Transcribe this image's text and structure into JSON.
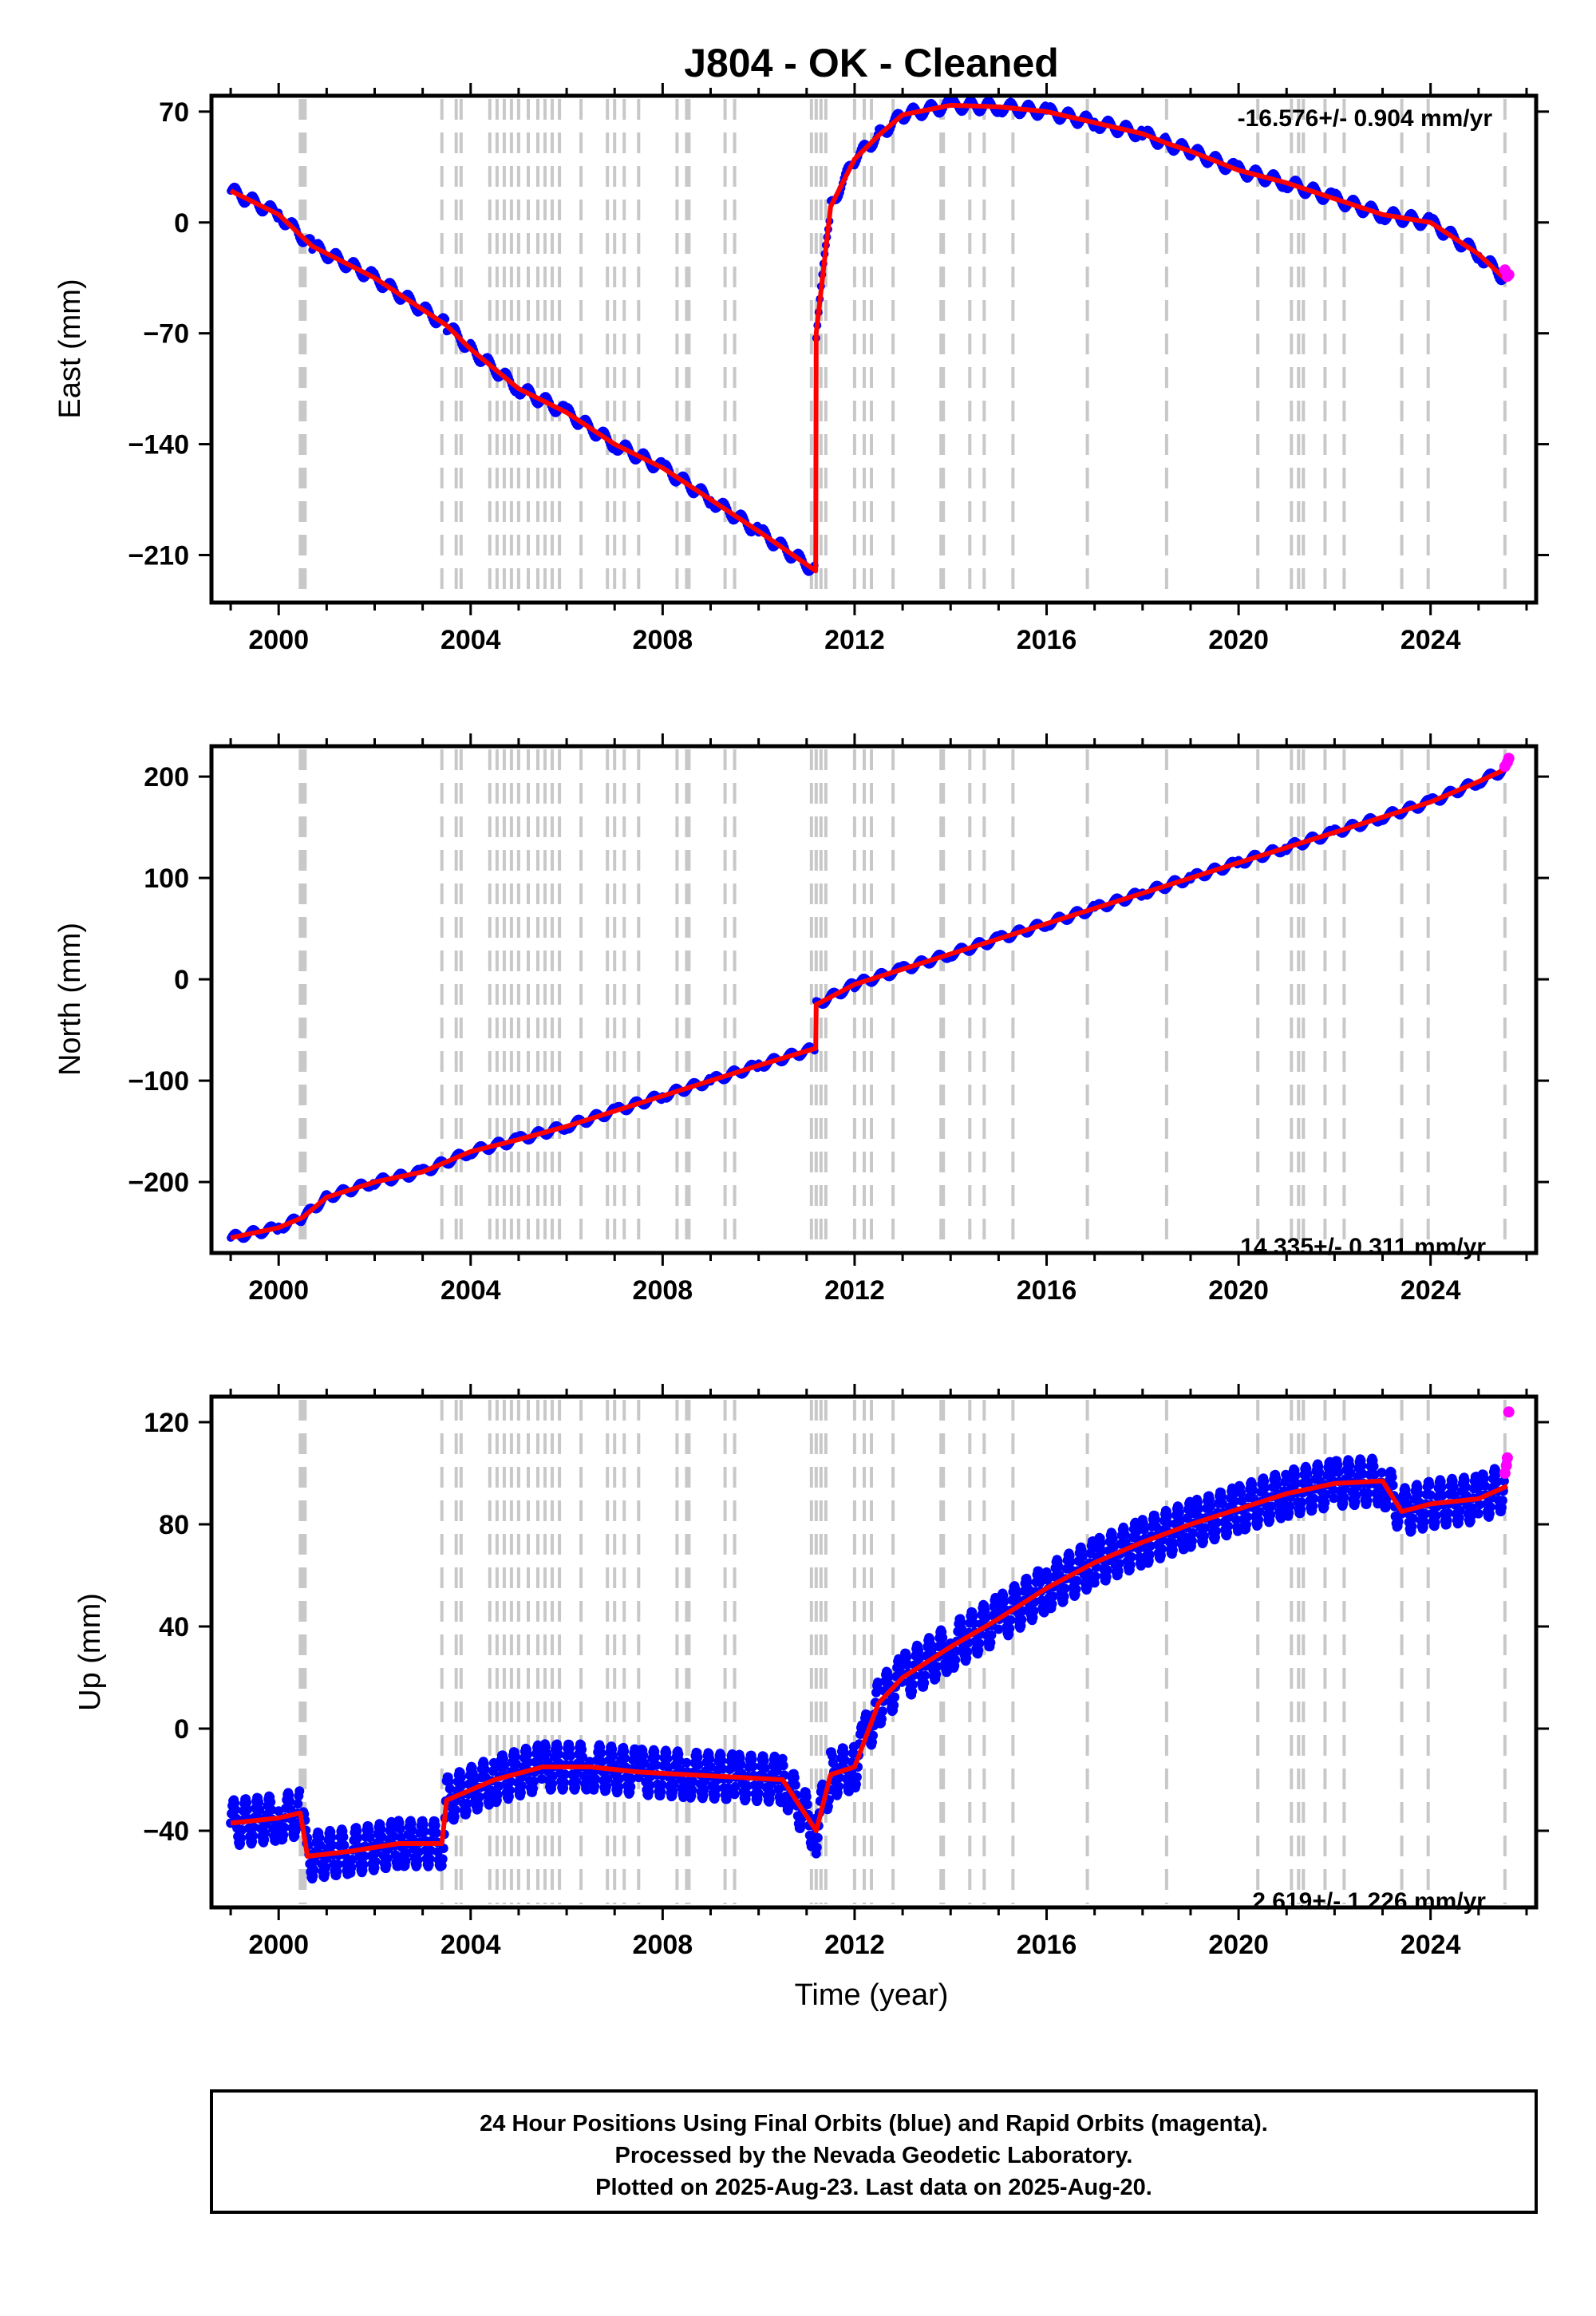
{
  "title": "J804  - OK - Cleaned",
  "xlabel": "Time (year)",
  "colors": {
    "final": "#0000ff",
    "rapid": "#ff00ff",
    "model": "#ff0000",
    "steps": "#c8c8c8"
  },
  "chart_data": [
    {
      "type": "scatter",
      "ylabel": "East (mm)",
      "rate": "-16.576+/- 0.904 mm/yr",
      "xlim": [
        1998.6,
        2026.2
      ],
      "ylim": [
        -240,
        80
      ],
      "xticks": [
        "2000",
        "2004",
        "2008",
        "2012",
        "2016",
        "2020",
        "2024"
      ],
      "yticks": [
        "70",
        "0",
        "−70",
        "−140",
        "−210"
      ],
      "series": [
        {
          "name": "Final Orbits (blue)",
          "x": [
            1999.0,
            2000.0,
            2000.7,
            2002.0,
            2003.5,
            2004.0,
            2005.0,
            2006.0,
            2007.0,
            2008.0,
            2009.0,
            2010.0,
            2011.19,
            2011.2,
            2011.5,
            2012.0,
            2012.5,
            2013.0,
            2014.0,
            2015.0,
            2016.0,
            2017.0,
            2018.0,
            2018.5,
            2019.0,
            2020.0,
            2021.0,
            2022.0,
            2023.0,
            2024.0,
            2025.0,
            2025.6
          ],
          "y": [
            20,
            5,
            -15,
            -35,
            -65,
            -80,
            -105,
            -120,
            -140,
            -155,
            -175,
            -195,
            -220,
            -70,
            10,
            40,
            55,
            68,
            74,
            73,
            70,
            63,
            56,
            50,
            45,
            33,
            25,
            15,
            5,
            0,
            -20,
            -37
          ]
        },
        {
          "name": "Rapid Orbits (magenta)",
          "x": [
            2025.55,
            2025.6,
            2025.63
          ],
          "y": [
            -30,
            -34,
            -33
          ]
        }
      ],
      "steps": [
        2000.45,
        2000.5,
        2000.55,
        2003.4,
        2003.7,
        2003.8,
        2004.4,
        2004.55,
        2004.7,
        2004.85,
        2005.0,
        2005.2,
        2005.4,
        2005.55,
        2005.7,
        2005.85,
        2006.3,
        2006.85,
        2007.0,
        2007.2,
        2007.5,
        2008.3,
        2008.5,
        2008.55,
        2009.3,
        2009.5,
        2011.1,
        2011.2,
        2011.3,
        2011.4,
        2012.0,
        2012.2,
        2012.35,
        2012.8,
        2013.8,
        2013.85,
        2014.4,
        2014.7,
        2015.3,
        2016.85,
        2018.5,
        2020.4,
        2021.1,
        2021.25,
        2021.35,
        2021.8,
        2022.2,
        2023.4,
        2023.95,
        2025.55
      ]
    },
    {
      "type": "scatter",
      "ylabel": "North (mm)",
      "rate": "14.335+/- 0.311 mm/yr",
      "xlim": [
        1998.6,
        2026.2
      ],
      "ylim": [
        -270,
        230
      ],
      "xticks": [
        "2000",
        "2004",
        "2008",
        "2012",
        "2016",
        "2020",
        "2024"
      ],
      "yticks": [
        "200",
        "100",
        "0",
        "−100",
        "−200"
      ],
      "series": [
        {
          "name": "Final Orbits (blue)",
          "x": [
            1999.0,
            2000.0,
            2000.5,
            2001.0,
            2002.0,
            2003.0,
            2004.0,
            2005.0,
            2006.0,
            2007.0,
            2008.0,
            2009.0,
            2010.0,
            2011.19,
            2011.2,
            2012.0,
            2013.0,
            2014.0,
            2015.0,
            2016.0,
            2017.0,
            2018.0,
            2019.0,
            2020.0,
            2021.0,
            2022.0,
            2023.0,
            2024.0,
            2025.0,
            2025.6
          ],
          "y": [
            -255,
            -245,
            -235,
            -215,
            -200,
            -190,
            -170,
            -158,
            -145,
            -130,
            -115,
            -100,
            -85,
            -68,
            -25,
            -5,
            10,
            25,
            40,
            55,
            70,
            85,
            100,
            115,
            130,
            145,
            160,
            175,
            195,
            208
          ]
        },
        {
          "name": "Rapid Orbits (magenta)",
          "x": [
            2025.55,
            2025.6,
            2025.63
          ],
          "y": [
            210,
            214,
            218
          ]
        }
      ],
      "steps": [
        2000.45,
        2000.5,
        2000.55,
        2003.4,
        2003.7,
        2003.8,
        2004.4,
        2004.55,
        2004.7,
        2004.85,
        2005.0,
        2005.2,
        2005.4,
        2005.55,
        2005.7,
        2005.85,
        2006.3,
        2006.85,
        2007.0,
        2007.2,
        2007.5,
        2008.3,
        2008.5,
        2008.55,
        2009.3,
        2009.5,
        2011.1,
        2011.2,
        2011.3,
        2011.4,
        2012.0,
        2012.2,
        2012.35,
        2012.8,
        2013.8,
        2013.85,
        2014.4,
        2014.7,
        2015.3,
        2016.85,
        2018.5,
        2020.4,
        2021.1,
        2021.25,
        2021.35,
        2021.8,
        2022.2,
        2023.4,
        2023.95,
        2025.55
      ]
    },
    {
      "type": "scatter",
      "ylabel": "Up (mm)",
      "rate": "2.619+/- 1.226 mm/yr",
      "xlim": [
        1998.6,
        2026.2
      ],
      "ylim": [
        -70,
        130
      ],
      "xticks": [
        "2000",
        "2004",
        "2008",
        "2012",
        "2016",
        "2020",
        "2024"
      ],
      "yticks": [
        "120",
        "80",
        "40",
        "0",
        "−40"
      ],
      "series": [
        {
          "name": "Final Orbits (blue)",
          "x": [
            1999.0,
            2000.0,
            2000.45,
            2000.6,
            2001.5,
            2002.5,
            2003.4,
            2003.5,
            2004.5,
            2005.5,
            2006.5,
            2007.5,
            2008.5,
            2009.5,
            2010.5,
            2011.2,
            2011.5,
            2012.0,
            2012.2,
            2012.5,
            2013.0,
            2014.0,
            2015.0,
            2016.0,
            2017.0,
            2018.0,
            2019.0,
            2020.0,
            2021.0,
            2022.0,
            2023.0,
            2023.4,
            2024.0,
            2025.0,
            2025.6
          ],
          "y": [
            -37,
            -35,
            -33,
            -50,
            -48,
            -45,
            -45,
            -28,
            -20,
            -15,
            -15,
            -17,
            -18,
            -19,
            -20,
            -40,
            -18,
            -15,
            -5,
            10,
            20,
            32,
            43,
            55,
            65,
            73,
            80,
            86,
            92,
            96,
            97,
            85,
            88,
            90,
            95
          ]
        },
        {
          "name": "Rapid Orbits (magenta)",
          "x": [
            2025.55,
            2025.58,
            2025.6,
            2025.63
          ],
          "y": [
            100,
            103,
            106,
            124
          ]
        }
      ],
      "steps": [
        2000.45,
        2000.5,
        2000.55,
        2003.4,
        2003.7,
        2003.8,
        2004.4,
        2004.55,
        2004.7,
        2004.85,
        2005.0,
        2005.2,
        2005.4,
        2005.55,
        2005.7,
        2005.85,
        2006.3,
        2006.85,
        2007.0,
        2007.2,
        2007.5,
        2008.3,
        2008.5,
        2008.55,
        2009.3,
        2009.5,
        2011.1,
        2011.2,
        2011.3,
        2011.4,
        2012.0,
        2012.2,
        2012.35,
        2012.8,
        2013.8,
        2013.85,
        2014.4,
        2014.7,
        2015.3,
        2016.85,
        2018.5,
        2020.4,
        2021.1,
        2021.25,
        2021.35,
        2021.8,
        2022.2,
        2023.4,
        2023.95,
        2025.55
      ]
    }
  ],
  "footer": {
    "line1": "24 Hour Positions Using Final Orbits (blue) and Rapid Orbits (magenta).",
    "line2": "Processed by the Nevada Geodetic Laboratory.",
    "line3": "Plotted on 2025-Aug-23. Last data on 2025-Aug-20."
  }
}
